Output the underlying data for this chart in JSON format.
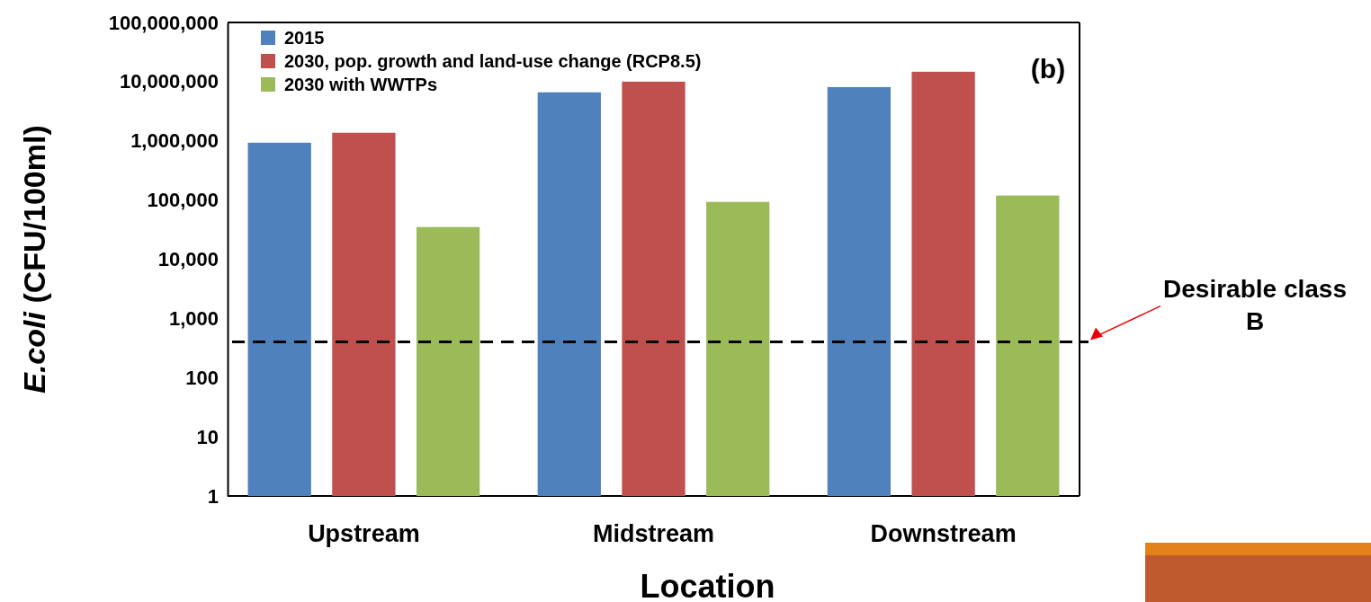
{
  "chart_data": {
    "type": "bar",
    "xlabel": "Location",
    "ylabel": "E.coli (CFU/100ml)",
    "categories": [
      "Upstream",
      "Midstream",
      "Downstream"
    ],
    "series": [
      {
        "name": "2015",
        "color": "#4f81bd",
        "values": [
          930000,
          6600000,
          8100000
        ]
      },
      {
        "name": "2030, pop. growth and land-use change (RCP8.5)",
        "color": "#c0504d",
        "values": [
          1370000,
          10000000,
          14700000
        ]
      },
      {
        "name": "2030 with WWTPs",
        "color": "#9bbb59",
        "values": [
          35000,
          93000,
          119000
        ]
      }
    ],
    "log": "y",
    "ylim": [
      1,
      100000000
    ],
    "yticks": [
      {
        "value": 1,
        "label": "1"
      },
      {
        "value": 10,
        "label": "10"
      },
      {
        "value": 100,
        "label": "100"
      },
      {
        "value": 1000,
        "label": "1,000"
      },
      {
        "value": 10000,
        "label": "10,000"
      },
      {
        "value": 100000,
        "label": "100,000"
      },
      {
        "value": 1000000,
        "label": "1,000,000"
      },
      {
        "value": 10000000,
        "label": "10,000,000"
      },
      {
        "value": 100000000,
        "label": "100,000,000"
      }
    ],
    "ref_lines": [
      {
        "axis": "y",
        "value": 400,
        "label": "Desirable class B",
        "color": "#000000",
        "line_style": "dashed"
      }
    ],
    "annotations": [
      "(b)"
    ],
    "legend": "top left",
    "grid": false
  }
}
